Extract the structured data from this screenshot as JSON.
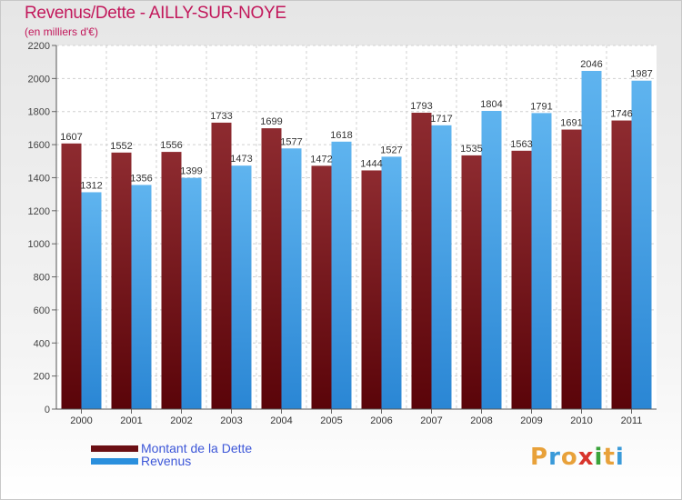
{
  "title": "Revenus/Dette - AILLY-SUR-NOYE",
  "subtitle": "(en milliers d'€)",
  "colors": {
    "dette": "#6b0f14",
    "dette_light": "#9e3a3e",
    "revenus": "#2a8fdd",
    "revenus_light": "#6ab8f0",
    "title": "#c2185b",
    "legend_text": "#3d57d8"
  },
  "legend": {
    "dette_label": "Montant de la Dette",
    "revenus_label": "Revenus"
  },
  "logo": {
    "text": "Proxiti"
  },
  "chart_data": {
    "type": "bar",
    "title": "Revenus/Dette - AILLY-SUR-NOYE",
    "ylabel": "(en milliers d'€)",
    "xlabel": "",
    "ylim": [
      0,
      2200
    ],
    "ytick_step": 200,
    "grid": true,
    "legend_position": "bottom-left",
    "categories": [
      "2000",
      "2001",
      "2002",
      "2003",
      "2004",
      "2005",
      "2006",
      "2007",
      "2008",
      "2009",
      "2010",
      "2011"
    ],
    "series": [
      {
        "name": "Montant de la Dette",
        "values": [
          1607,
          1552,
          1556,
          1733,
          1699,
          1472,
          1444,
          1793,
          1535,
          1563,
          1691,
          1746
        ]
      },
      {
        "name": "Revenus",
        "values": [
          1312,
          1356,
          1399,
          1473,
          1577,
          1618,
          1527,
          1717,
          1804,
          1791,
          2046,
          1987
        ]
      }
    ]
  }
}
